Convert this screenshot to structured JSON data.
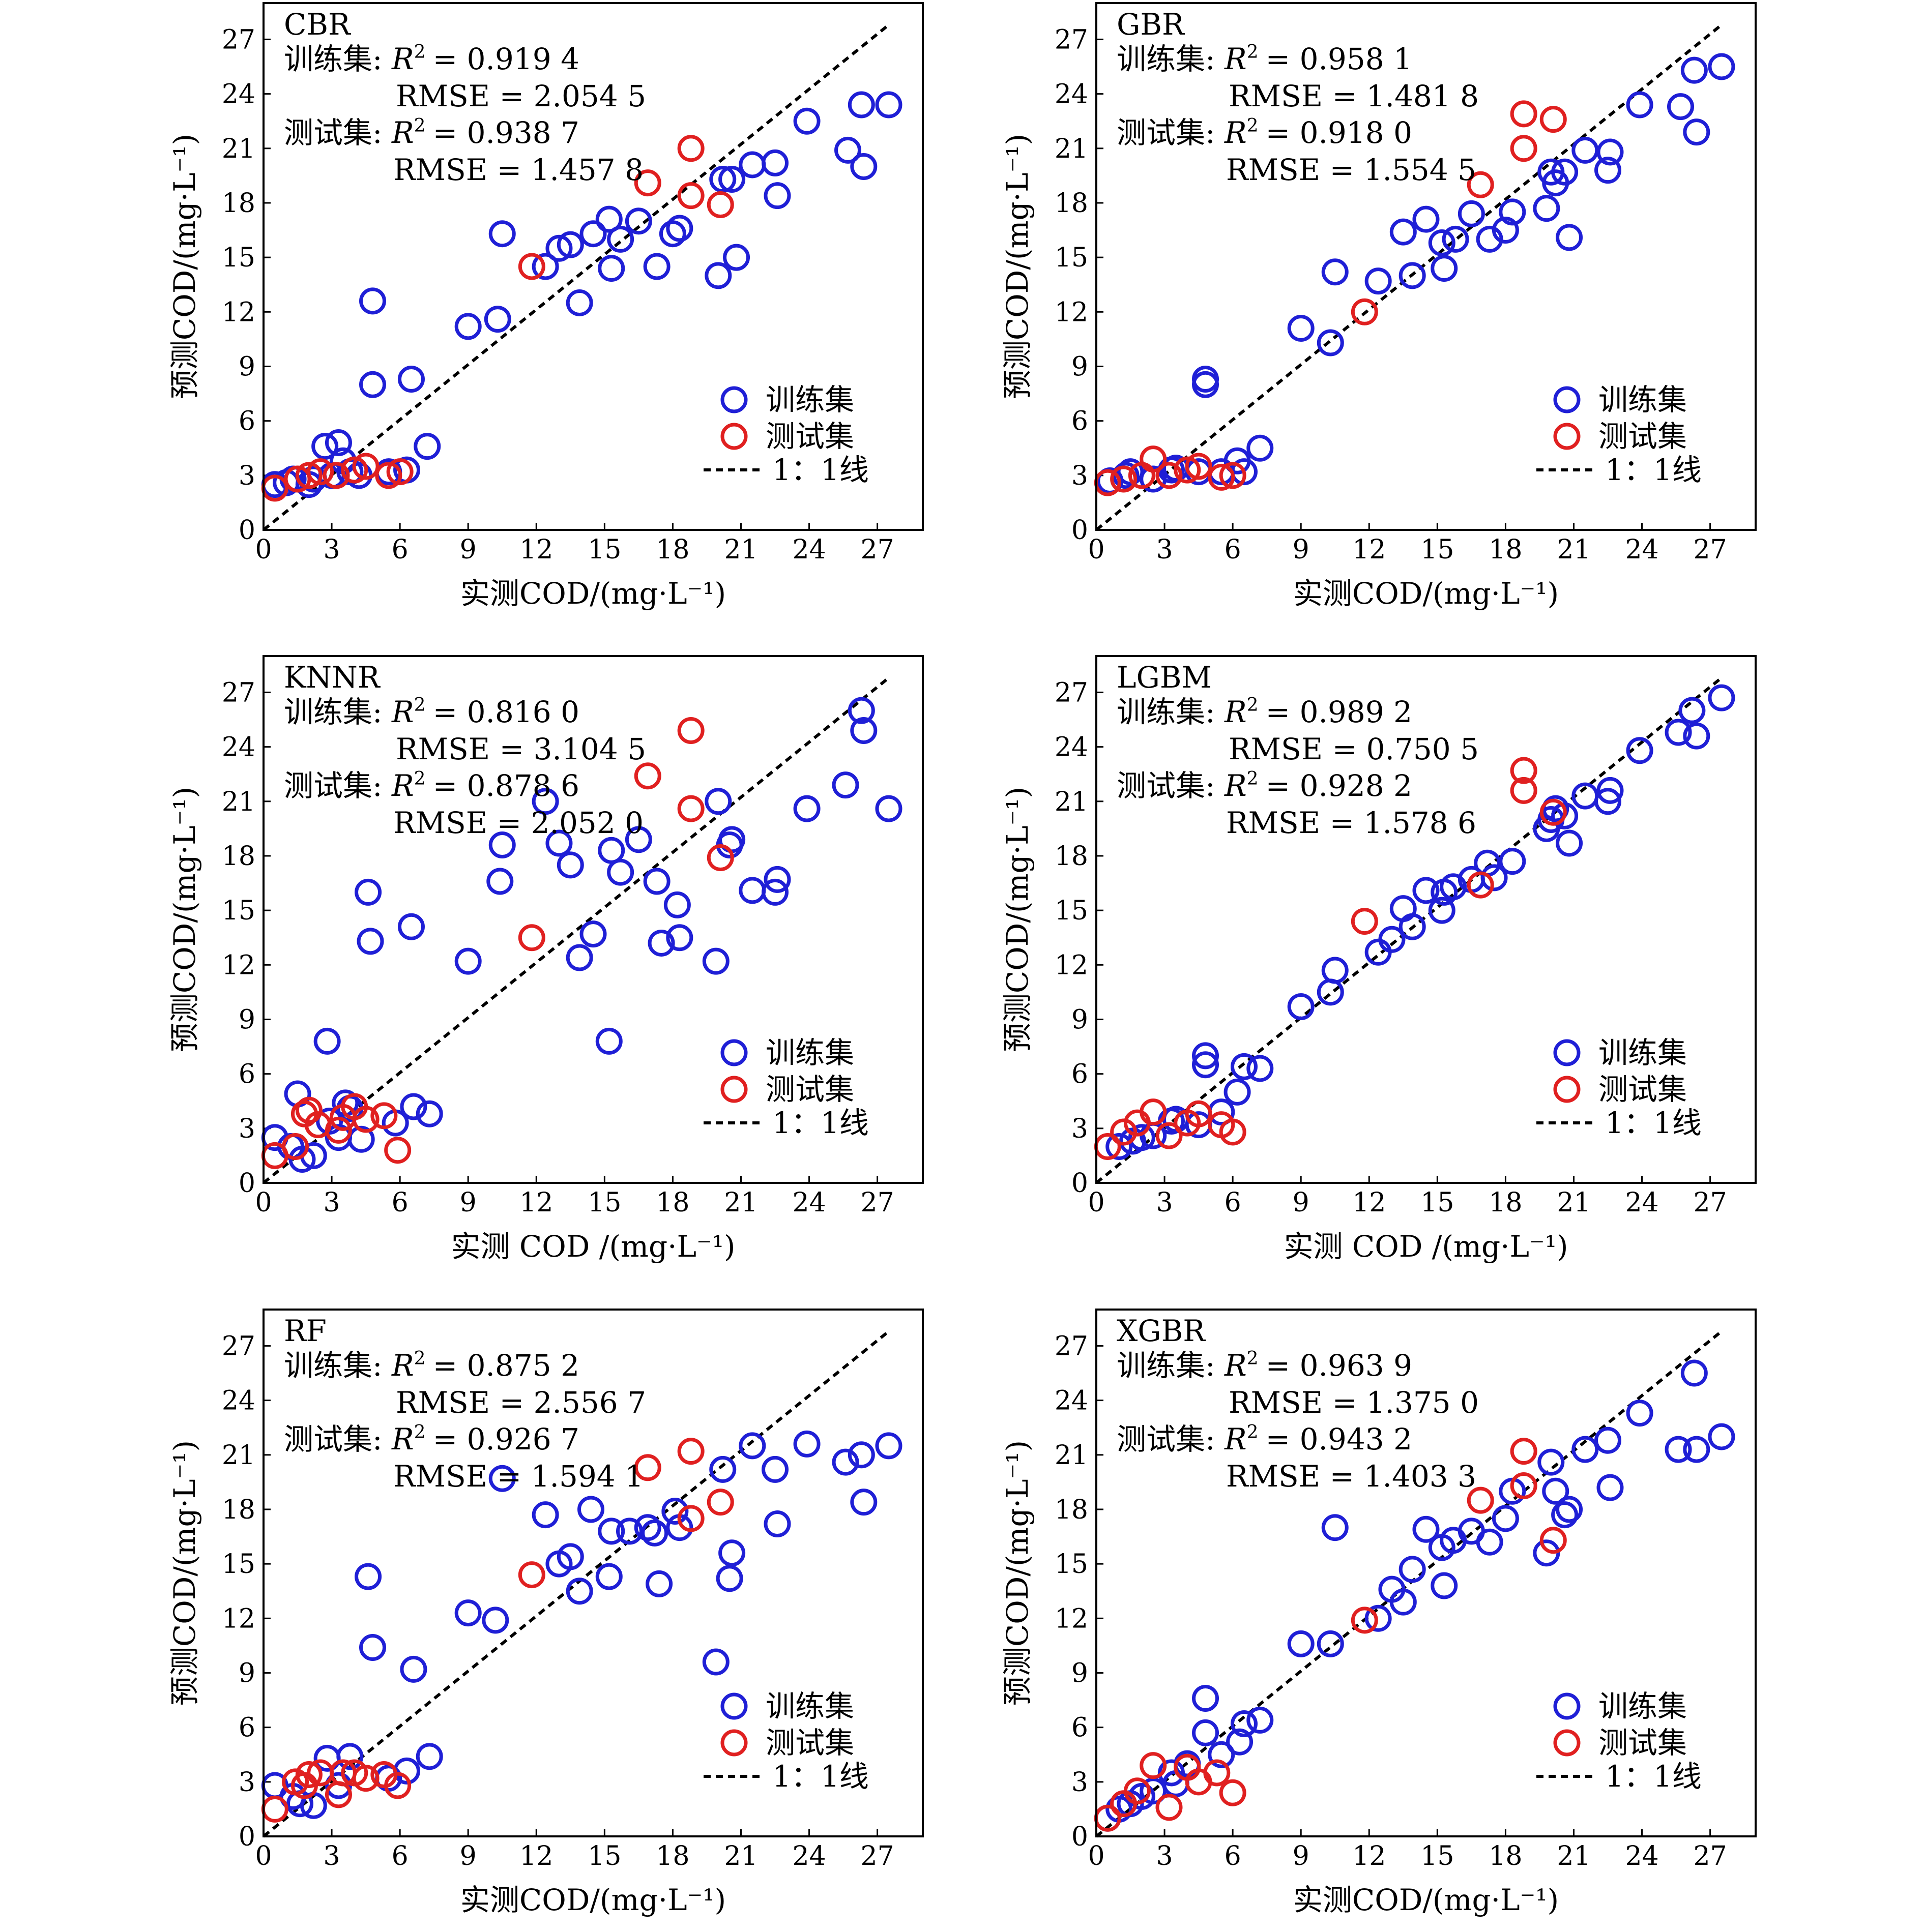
{
  "legend": {
    "train": "训练集",
    "test": "测试集",
    "line": "1：1线"
  },
  "colors": {
    "train": "#1f1fd6",
    "test": "#e02020",
    "line": "#000000"
  },
  "chart_data": [
    {
      "type": "scatter",
      "title": "CBR",
      "xlabel": "实测COD/(mg·L⁻¹)",
      "ylabel": "预测COD/(mg·L⁻¹)",
      "xlim": [
        0,
        29
      ],
      "ylim": [
        0,
        29
      ],
      "ticks": [
        0,
        3,
        6,
        9,
        12,
        15,
        18,
        21,
        24,
        27
      ],
      "train_prefix": "训练集: ",
      "train_r2": "= 0.919 4",
      "train_rmse": "RMSE = 2.054 5",
      "test_prefix": "测试集: ",
      "test_r2": "= 0.938 7",
      "test_rmse": "RMSE = 1.457 8",
      "series": [
        {
          "name": "训练集",
          "x": [
            0.5,
            1.0,
            1.3,
            2.0,
            2.2,
            2.7,
            3.0,
            3.3,
            3.5,
            3.8,
            4.2,
            4.8,
            4.8,
            5.5,
            6.3,
            6.5,
            7.2,
            9.0,
            10.3,
            10.5,
            12.4,
            13.0,
            13.5,
            13.9,
            14.5,
            15.2,
            15.3,
            15.7,
            16.5,
            17.3,
            18.0,
            18.3,
            20.0,
            20.2,
            20.6,
            20.8,
            21.5,
            22.5,
            22.6,
            23.9,
            25.7,
            26.3,
            26.4,
            27.5
          ],
          "y": [
            2.5,
            2.6,
            2.8,
            2.5,
            2.8,
            4.6,
            3.0,
            4.8,
            3.8,
            3.2,
            3.0,
            8.0,
            12.6,
            3.2,
            3.3,
            8.3,
            4.6,
            11.2,
            11.6,
            16.3,
            14.5,
            15.5,
            15.7,
            12.5,
            16.3,
            17.1,
            14.4,
            16.0,
            17.0,
            14.5,
            16.3,
            16.6,
            14.0,
            19.3,
            19.3,
            15.0,
            20.1,
            20.2,
            18.4,
            22.5,
            20.9,
            23.4,
            20.0,
            23.4
          ]
        },
        {
          "name": "测试集",
          "x": [
            0.5,
            1.5,
            2.0,
            2.5,
            3.2,
            4.0,
            4.5,
            5.5,
            6.0,
            11.8,
            16.9,
            18.8,
            18.8,
            20.1
          ],
          "y": [
            2.3,
            2.8,
            3.0,
            3.2,
            3.0,
            3.3,
            3.5,
            3.0,
            3.2,
            14.5,
            19.1,
            21.0,
            18.4,
            17.9
          ]
        }
      ]
    },
    {
      "type": "scatter",
      "title": "GBR",
      "xlabel": "实测COD/(mg·L⁻¹)",
      "ylabel": "预测COD/(mg·L⁻¹)",
      "xlim": [
        0,
        29
      ],
      "ylim": [
        0,
        29
      ],
      "ticks": [
        0,
        3,
        6,
        9,
        12,
        15,
        18,
        21,
        24,
        27
      ],
      "train_prefix": "训练集: ",
      "train_r2": "= 0.958 1",
      "train_rmse": "RMSE = 1.481 8",
      "test_prefix": "测试集: ",
      "test_r2": "= 0.918 0",
      "test_rmse": "RMSE = 1.554 5",
      "series": [
        {
          "name": "训练集",
          "x": [
            0.6,
            1.3,
            1.5,
            2.5,
            3.3,
            3.5,
            4.5,
            4.8,
            4.8,
            5.5,
            6.2,
            6.5,
            7.2,
            9.0,
            10.3,
            10.5,
            12.4,
            13.5,
            13.9,
            14.5,
            15.2,
            15.3,
            15.8,
            16.5,
            17.3,
            18.0,
            18.3,
            19.8,
            20.0,
            20.2,
            20.6,
            20.8,
            21.5,
            22.5,
            22.6,
            23.9,
            25.7,
            26.3,
            26.4,
            27.5
          ],
          "y": [
            2.7,
            3.0,
            3.2,
            2.8,
            3.3,
            3.4,
            3.2,
            8.0,
            8.3,
            3.2,
            3.8,
            3.2,
            4.5,
            11.1,
            10.3,
            14.2,
            13.7,
            16.4,
            14.0,
            17.1,
            15.8,
            14.4,
            16.0,
            17.4,
            16.0,
            16.5,
            17.5,
            17.7,
            19.7,
            19.1,
            19.7,
            16.1,
            20.9,
            19.8,
            20.8,
            23.4,
            23.3,
            25.3,
            21.9,
            25.5
          ]
        },
        {
          "name": "测试集",
          "x": [
            0.5,
            1.2,
            2.0,
            2.5,
            3.2,
            4.0,
            4.5,
            5.5,
            6.0,
            11.8,
            16.9,
            18.8,
            18.8,
            20.1
          ],
          "y": [
            2.6,
            2.8,
            3.0,
            3.9,
            3.0,
            3.3,
            3.5,
            2.9,
            3.0,
            12.0,
            19.0,
            22.9,
            21.0,
            22.6
          ]
        }
      ]
    },
    {
      "type": "scatter",
      "title": "KNNR",
      "xlabel": "实测 COD /(mg·L⁻¹)",
      "ylabel": "预测COD/(mg·L⁻¹)",
      "xlim": [
        0,
        29
      ],
      "ylim": [
        0,
        29
      ],
      "ticks": [
        0,
        3,
        6,
        9,
        12,
        15,
        18,
        21,
        24,
        27
      ],
      "train_prefix": "训练集: ",
      "train_r2": "= 0.816 0",
      "train_rmse": "RMSE = 3.104 5",
      "test_prefix": "测试集: ",
      "test_r2": "= 0.878 6",
      "test_rmse": "RMSE = 2.052 0",
      "series": [
        {
          "name": "训练集",
          "x": [
            0.5,
            1.2,
            1.5,
            1.7,
            2.2,
            2.8,
            2.9,
            3.3,
            3.6,
            3.8,
            4.3,
            4.6,
            4.7,
            5.8,
            6.5,
            6.6,
            7.3,
            9.0,
            10.4,
            10.5,
            12.4,
            13.0,
            13.5,
            13.9,
            14.5,
            15.3,
            15.2,
            15.7,
            16.5,
            17.3,
            17.5,
            18.2,
            18.3,
            19.9,
            20.0,
            20.5,
            20.6,
            21.5,
            22.5,
            22.6,
            23.9,
            25.6,
            26.3,
            26.4,
            27.5
          ],
          "y": [
            2.5,
            2.0,
            4.9,
            1.3,
            1.5,
            7.8,
            3.4,
            2.5,
            4.4,
            4.1,
            2.4,
            16.0,
            13.3,
            3.3,
            14.1,
            4.2,
            3.8,
            12.2,
            16.6,
            18.6,
            21.0,
            18.7,
            17.5,
            12.4,
            13.7,
            18.3,
            7.8,
            17.1,
            18.9,
            16.6,
            13.2,
            15.3,
            13.5,
            12.2,
            21.0,
            18.6,
            18.9,
            16.1,
            16.0,
            16.7,
            20.6,
            21.9,
            26.0,
            24.9,
            20.6
          ]
        },
        {
          "name": "测试集",
          "x": [
            0.5,
            1.4,
            1.8,
            2.0,
            2.4,
            3.3,
            3.5,
            4.0,
            4.5,
            5.3,
            5.9,
            11.8,
            16.9,
            18.8,
            18.8,
            20.1
          ],
          "y": [
            1.5,
            2.0,
            3.8,
            4.0,
            3.2,
            2.9,
            3.6,
            4.2,
            3.5,
            3.7,
            1.8,
            13.5,
            22.4,
            24.9,
            20.6,
            17.9
          ]
        }
      ]
    },
    {
      "type": "scatter",
      "title": "LGBM",
      "xlabel": "实测 COD /(mg·L⁻¹)",
      "ylabel": "预测COD/(mg·L⁻¹)",
      "xlim": [
        0,
        29
      ],
      "ylim": [
        0,
        29
      ],
      "ticks": [
        0,
        3,
        6,
        9,
        12,
        15,
        18,
        21,
        24,
        27
      ],
      "train_prefix": "训练集: ",
      "train_r2": "= 0.989 2",
      "train_rmse": "RMSE = 0.750 5",
      "test_prefix": "测试集: ",
      "test_r2": "= 0.928 2",
      "test_rmse": "RMSE = 1.578 6",
      "series": [
        {
          "name": "训练集",
          "x": [
            1.0,
            1.6,
            2.0,
            2.5,
            3.3,
            3.5,
            4.5,
            4.8,
            4.8,
            5.5,
            6.2,
            6.5,
            7.2,
            9.0,
            10.3,
            10.5,
            12.4,
            13.0,
            13.5,
            13.9,
            14.5,
            15.3,
            15.2,
            15.7,
            16.5,
            17.2,
            17.5,
            18.3,
            19.8,
            20.0,
            20.2,
            20.6,
            20.8,
            21.5,
            22.5,
            22.6,
            23.9,
            25.6,
            26.2,
            26.4,
            27.5
          ],
          "y": [
            2.0,
            2.3,
            2.5,
            2.6,
            3.4,
            3.5,
            3.2,
            6.5,
            7.0,
            3.9,
            5.0,
            6.4,
            6.3,
            9.7,
            10.5,
            11.7,
            12.7,
            13.4,
            15.1,
            14.1,
            16.1,
            16.0,
            15.0,
            16.3,
            16.7,
            17.6,
            16.8,
            17.7,
            19.5,
            20.0,
            20.6,
            20.2,
            18.7,
            21.3,
            21.0,
            21.6,
            23.8,
            24.8,
            26.0,
            24.6,
            26.7
          ]
        },
        {
          "name": "测试集",
          "x": [
            0.5,
            1.2,
            1.8,
            2.5,
            3.2,
            4.0,
            4.5,
            5.5,
            6.0,
            11.8,
            16.9,
            18.8,
            18.8,
            20.1
          ],
          "y": [
            2.0,
            2.8,
            3.3,
            3.9,
            2.6,
            3.3,
            3.8,
            3.2,
            2.8,
            14.4,
            16.4,
            22.7,
            21.6,
            20.4
          ]
        }
      ]
    },
    {
      "type": "scatter",
      "title": "RF",
      "xlabel": "实测COD/(mg·L⁻¹)",
      "ylabel": "预测COD/(mg·L⁻¹)",
      "xlim": [
        0,
        29
      ],
      "ylim": [
        0,
        29
      ],
      "ticks": [
        0,
        3,
        6,
        9,
        12,
        15,
        18,
        21,
        24,
        27
      ],
      "train_prefix": "训练集: ",
      "train_r2": "= 0.875 2",
      "train_rmse": "RMSE = 2.556 7",
      "test_prefix": "测试集: ",
      "test_r2": "= 0.926 7",
      "test_rmse": "RMSE = 1.594 1",
      "series": [
        {
          "name": "训练集",
          "x": [
            0.5,
            1.3,
            1.6,
            2.2,
            2.8,
            3.3,
            3.8,
            4.6,
            4.8,
            5.5,
            6.3,
            6.6,
            7.3,
            9.0,
            10.2,
            10.5,
            12.4,
            13.0,
            13.5,
            13.9,
            14.4,
            15.2,
            15.3,
            16.1,
            16.9,
            17.2,
            17.4,
            18.1,
            18.3,
            19.9,
            20.2,
            20.5,
            20.6,
            21.5,
            22.5,
            22.6,
            23.9,
            25.6,
            26.3,
            26.4,
            27.5
          ],
          "y": [
            2.8,
            2.2,
            1.8,
            1.7,
            4.3,
            2.8,
            4.4,
            14.3,
            10.4,
            3.2,
            3.6,
            9.2,
            4.4,
            12.3,
            11.9,
            19.7,
            17.7,
            15.0,
            15.4,
            13.5,
            18.0,
            14.3,
            16.8,
            16.8,
            17.0,
            16.7,
            13.9,
            17.9,
            17.0,
            9.6,
            20.2,
            14.2,
            15.6,
            21.5,
            20.2,
            17.2,
            21.6,
            20.6,
            21.0,
            18.4,
            21.5
          ]
        },
        {
          "name": "测试集",
          "x": [
            0.5,
            1.4,
            1.8,
            2.0,
            2.5,
            3.3,
            3.5,
            4.0,
            4.5,
            5.3,
            5.9,
            11.8,
            16.9,
            18.8,
            18.8,
            20.1
          ],
          "y": [
            1.5,
            3.0,
            2.8,
            3.4,
            3.5,
            2.3,
            3.5,
            3.5,
            3.2,
            3.4,
            2.8,
            14.4,
            20.3,
            21.2,
            17.5,
            18.4
          ]
        }
      ]
    },
    {
      "type": "scatter",
      "title": "XGBR",
      "xlabel": "实测COD/(mg·L⁻¹)",
      "ylabel": "预测COD/(mg·L⁻¹)",
      "xlim": [
        0,
        29
      ],
      "ylim": [
        0,
        29
      ],
      "ticks": [
        0,
        3,
        6,
        9,
        12,
        15,
        18,
        21,
        24,
        27
      ],
      "train_prefix": "训练集: ",
      "train_r2": "= 0.963 9",
      "train_rmse": "RMSE = 1.375 0",
      "test_prefix": "测试集: ",
      "test_r2": "= 0.943 2",
      "test_rmse": "RMSE = 1.403 3",
      "series": [
        {
          "name": "训练集",
          "x": [
            0.5,
            1.0,
            1.5,
            2.0,
            2.5,
            3.3,
            3.5,
            4.0,
            4.8,
            4.8,
            5.5,
            6.3,
            6.5,
            7.2,
            9.0,
            10.3,
            10.5,
            12.4,
            13.0,
            13.5,
            13.9,
            14.5,
            15.2,
            15.3,
            15.7,
            16.5,
            17.3,
            18.0,
            18.3,
            19.8,
            20.0,
            20.2,
            20.6,
            20.8,
            21.5,
            22.5,
            22.6,
            23.9,
            25.6,
            26.3,
            26.4,
            27.5
          ],
          "y": [
            1.0,
            1.5,
            1.8,
            2.2,
            2.5,
            3.5,
            2.9,
            4.0,
            5.7,
            7.6,
            4.5,
            5.2,
            6.2,
            6.4,
            10.6,
            10.6,
            17.0,
            12.0,
            13.6,
            12.9,
            14.7,
            16.9,
            15.9,
            13.8,
            16.3,
            16.8,
            16.2,
            17.5,
            19.0,
            15.6,
            20.6,
            19.0,
            17.7,
            18.0,
            21.3,
            21.8,
            19.2,
            23.3,
            21.3,
            25.5,
            21.3,
            22.0
          ]
        },
        {
          "name": "测试集",
          "x": [
            0.5,
            1.2,
            1.8,
            2.5,
            3.2,
            4.0,
            4.5,
            5.3,
            6.0,
            11.8,
            16.9,
            18.8,
            18.8,
            20.1
          ],
          "y": [
            1.0,
            1.8,
            2.5,
            3.9,
            1.6,
            3.8,
            3.0,
            3.5,
            2.4,
            11.9,
            18.5,
            21.2,
            19.3,
            16.3
          ]
        }
      ]
    }
  ]
}
